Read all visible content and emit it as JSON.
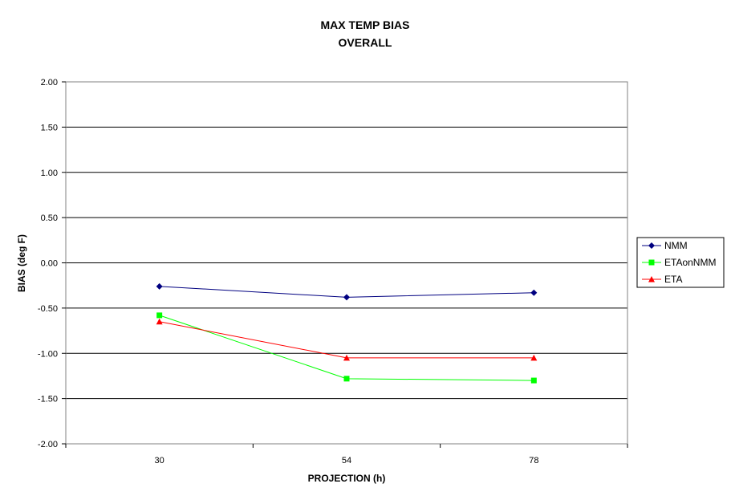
{
  "chart_data": {
    "type": "line",
    "title": "MAX TEMP BIAS",
    "subtitle": "OVERALL",
    "xlabel": "PROJECTION (h)",
    "ylabel": "BIAS (deg F)",
    "categories": [
      "30",
      "54",
      "78"
    ],
    "ylim": [
      -2.0,
      2.0
    ],
    "yticks": [
      "2.00",
      "1.50",
      "1.00",
      "0.50",
      "0.00",
      "-0.50",
      "-1.00",
      "-1.50",
      "-2.00"
    ],
    "grid": true,
    "legend_position": "right",
    "series": [
      {
        "name": "NMM",
        "values": [
          -0.26,
          -0.38,
          -0.33
        ],
        "color": "#000080",
        "marker": "diamond"
      },
      {
        "name": "ETAonNMM",
        "values": [
          -0.58,
          -1.28,
          -1.3
        ],
        "color": "#00ff00",
        "marker": "square"
      },
      {
        "name": "ETA",
        "values": [
          -0.65,
          -1.05,
          -1.05
        ],
        "color": "#ff0000",
        "marker": "triangle"
      }
    ]
  }
}
